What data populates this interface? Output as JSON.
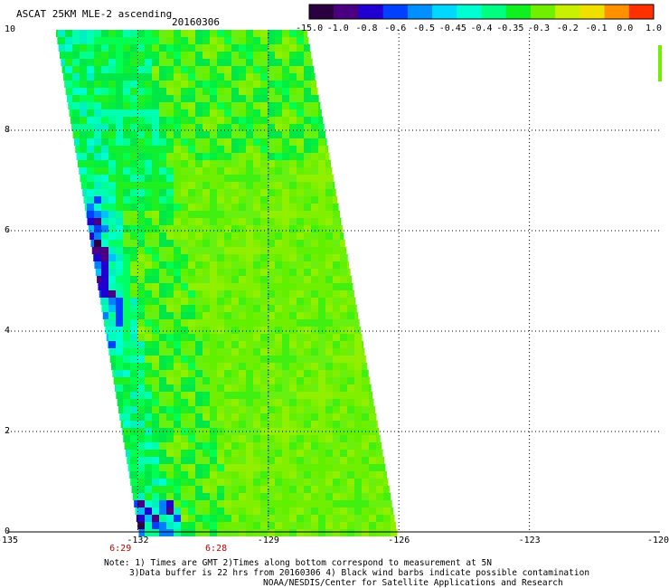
{
  "title": "ASCAT 25KM MLE-2 ascending",
  "date": "20160306",
  "colorbar": {
    "labels": [
      "-15.0",
      "-1.0",
      "-0.8",
      "-0.6",
      "-0.5",
      "-0.45",
      "-0.4",
      "-0.35",
      "-0.3",
      "-0.2",
      "-0.1",
      "0.0",
      "1.0"
    ],
    "colors": [
      "#2a0040",
      "#4b0082",
      "#1f00d0",
      "#0040ff",
      "#0090ff",
      "#00d8ff",
      "#00ffd0",
      "#00ff80",
      "#10f020",
      "#70f000",
      "#c8f000",
      "#f0e000",
      "#ff9000",
      "#ff3000"
    ]
  },
  "axes": {
    "x_ticks": [
      "-135",
      "-132",
      "-129",
      "-126",
      "-123",
      "-120"
    ],
    "y_ticks": [
      "0",
      "2",
      "4",
      "6",
      "8",
      "10"
    ],
    "lon_range": [
      -135,
      -120
    ],
    "lat_range": [
      0,
      10
    ]
  },
  "times": [
    {
      "label": "6:29",
      "lon": -132.4
    },
    {
      "label": "6:28",
      "lon": -130.2
    }
  ],
  "notes": [
    "Note: 1) Times are GMT 2)Times along bottom correspond to measurement at 5N",
    "3)Data buffer is 22 hrs from 20160306 4) Black wind barbs indicate possible contamination",
    "NOAA/NESDIS/Center for Satellite Applications and Research"
  ]
}
